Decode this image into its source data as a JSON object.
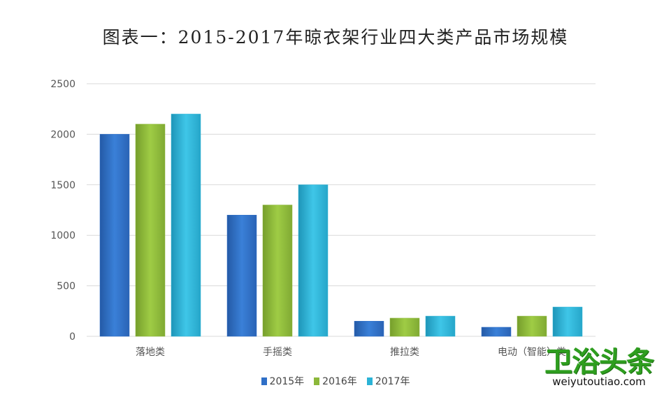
{
  "chart_data": {
    "type": "bar",
    "title": "图表一：2015-2017年晾衣架行业四大类产品市场规模",
    "categories": [
      "落地类",
      "手摇类",
      "推拉类",
      "电动（智能）类"
    ],
    "series": [
      {
        "name": "2015年",
        "values": [
          2000,
          1200,
          150,
          90
        ],
        "color": "#2f6fc7"
      },
      {
        "name": "2016年",
        "values": [
          2100,
          1300,
          180,
          200
        ],
        "color": "#8cb83a"
      },
      {
        "name": "2017年",
        "values": [
          2200,
          1500,
          200,
          290
        ],
        "color": "#2bb3d6"
      }
    ],
    "yticks": [
      "0",
      "500",
      "1000",
      "1500",
      "2000",
      "2500"
    ],
    "ylim": [
      0,
      2500
    ],
    "grid": true,
    "legend_position": "bottom"
  },
  "watermark": {
    "logo_text": "卫浴头条",
    "url_text": "weiyutoutiao.com"
  }
}
